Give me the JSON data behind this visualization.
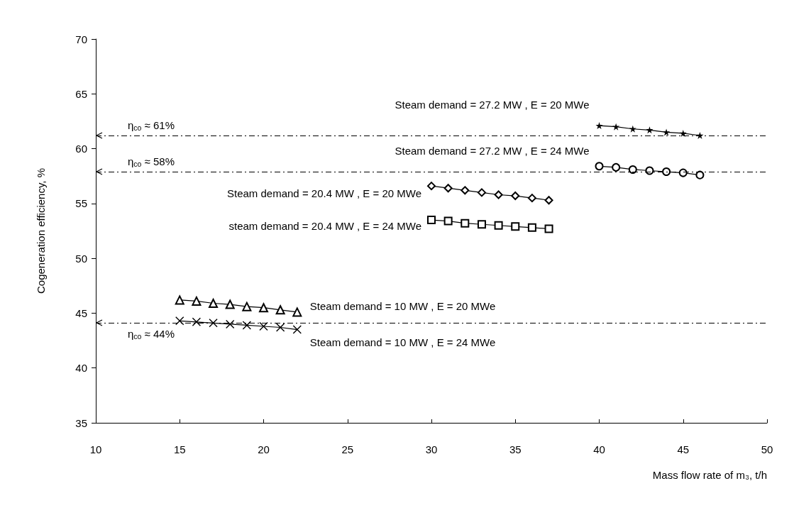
{
  "chart_data": {
    "type": "line",
    "xlabel": "Mass flow rate of m₃, t/h",
    "ylabel": "Cogeneration efficiency, %",
    "xlim": [
      10,
      50
    ],
    "xticks": [
      10,
      15,
      20,
      25,
      30,
      35,
      40,
      45,
      50
    ],
    "ylim": [
      35,
      70
    ],
    "yticks": [
      35,
      40,
      45,
      50,
      55,
      60,
      65,
      70
    ],
    "grid": false,
    "legend": false,
    "series": [
      {
        "name": "Steam demand = 27.2 MW , E = 20 MWe",
        "color": "#000000",
        "marker": "star",
        "x": [
          40,
          41,
          42,
          43,
          44,
          45,
          46
        ],
        "values": [
          62.1,
          62.0,
          61.8,
          61.7,
          61.5,
          61.4,
          61.2
        ]
      },
      {
        "name": "Steam demand = 27.2 MW , E = 24 MWe",
        "color": "#000000",
        "marker": "circle",
        "x": [
          40,
          41,
          42,
          43,
          44,
          45,
          46
        ],
        "values": [
          58.4,
          58.3,
          58.1,
          58.0,
          57.9,
          57.8,
          57.6
        ]
      },
      {
        "name": "Steam demand = 20.4 MW , E = 20 MWe",
        "color": "#000000",
        "marker": "diamond",
        "x": [
          30,
          31,
          32,
          33,
          34,
          35,
          36,
          37
        ],
        "values": [
          56.6,
          56.4,
          56.2,
          56.0,
          55.8,
          55.7,
          55.5,
          55.3
        ]
      },
      {
        "name": "steam demand = 20.4 MW , E = 24 MWe",
        "color": "#000000",
        "marker": "square",
        "x": [
          30,
          31,
          32,
          33,
          34,
          35,
          36,
          37
        ],
        "values": [
          53.5,
          53.4,
          53.2,
          53.1,
          53.0,
          52.9,
          52.8,
          52.7
        ]
      },
      {
        "name": "Steam demand = 10 MW , E = 20 MWe",
        "color": "#000000",
        "marker": "triangle",
        "x": [
          15,
          16,
          17,
          18,
          19,
          20,
          21,
          22
        ],
        "values": [
          46.2,
          46.1,
          45.9,
          45.8,
          45.6,
          45.5,
          45.3,
          45.1
        ]
      },
      {
        "name": "Steam demand = 10 MW , E = 24 MWe",
        "color": "#000000",
        "marker": "cross",
        "x": [
          15,
          16,
          17,
          18,
          19,
          20,
          21,
          22
        ],
        "values": [
          44.3,
          44.2,
          44.1,
          44.0,
          43.9,
          43.8,
          43.7,
          43.5
        ]
      }
    ],
    "ref_lines": [
      {
        "axis": "y",
        "value": 61.2,
        "label": "η$_{co}$ ≈ 61%",
        "color": "#000000",
        "line_style": "dashed"
      },
      {
        "axis": "y",
        "value": 57.9,
        "label": "η$_{co}$ ≈ 58%",
        "color": "#000000",
        "line_style": "dashed"
      },
      {
        "axis": "y",
        "value": 44.1,
        "label": "η$_{co}$ ≈ 44%",
        "color": "#000000",
        "line_style": "dashed"
      }
    ]
  }
}
